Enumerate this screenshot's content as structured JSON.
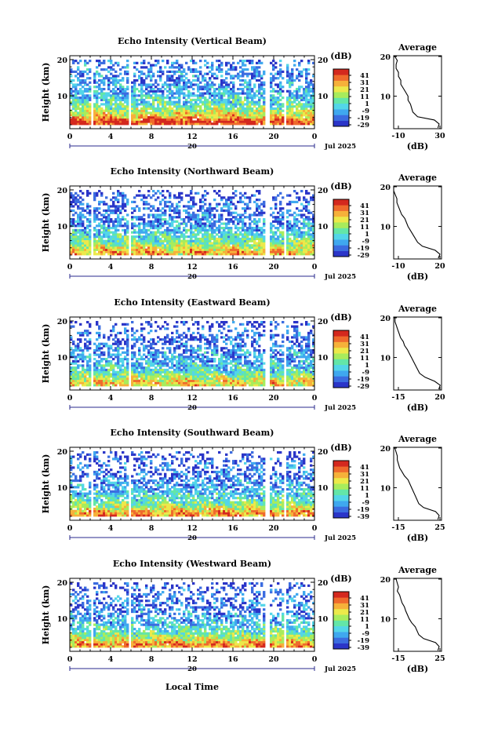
{
  "figure": {
    "panels": [
      {
        "title": "Echo Intensity (Vertical Beam)",
        "colorbar_ticks": [
          "41",
          "31",
          "21",
          "11",
          "1",
          "-9",
          "-19",
          "-29"
        ],
        "profile_xticks": [
          "-10",
          "30"
        ]
      },
      {
        "title": "Echo Intensity (Northward Beam)",
        "colorbar_ticks": [
          "41",
          "31",
          "21",
          "11",
          "1",
          "-9",
          "-19",
          "-29"
        ],
        "profile_xticks": [
          "-10",
          "20"
        ]
      },
      {
        "title": "Echo Intensity (Eastward Beam)",
        "colorbar_ticks": [
          "41",
          "31",
          "21",
          "11",
          "1",
          "-9",
          "-19",
          "-29"
        ],
        "profile_xticks": [
          "-15",
          "20"
        ]
      },
      {
        "title": "Echo Intensity (Southward Beam)",
        "colorbar_ticks": [
          "41",
          "31",
          "21",
          "11",
          "1",
          "-9",
          "-19",
          "-39"
        ],
        "profile_xticks": [
          "-15",
          "25"
        ]
      },
      {
        "title": "Echo Intensity (Westward Beam)",
        "colorbar_ticks": [
          "41",
          "31",
          "21",
          "11",
          "1",
          "-9",
          "-19",
          "-39"
        ],
        "profile_xticks": [
          "-15",
          "25"
        ]
      }
    ],
    "ylabel": "Height (km)",
    "yticks": [
      "10",
      "20"
    ],
    "xticks": [
      "0",
      "4",
      "8",
      "12",
      "16",
      "20",
      "0"
    ],
    "date_day": "20",
    "date_label": "Jul 2025",
    "colorbar_unit": "(dB)",
    "profile_title": "Average",
    "profile_xlabel": "(dB)",
    "bottom_xlabel": "Local Time"
  },
  "colors": {
    "scale": [
      "#2b35c8",
      "#3b6ce0",
      "#3fa8ef",
      "#53d6e8",
      "#63e6a8",
      "#a8ec5c",
      "#ece94a",
      "#f6b13a",
      "#ef6a2c",
      "#d4281e"
    ]
  },
  "chart_data": {
    "type": "heatmap",
    "x_unit": "hour (local time)",
    "x_range": [
      0,
      24
    ],
    "y_unit": "km",
    "y_range": [
      2,
      20
    ],
    "data_gaps_hours": [
      [
        2.0,
        2.25
      ],
      [
        5.8,
        6.0
      ],
      [
        19.2,
        19.7
      ],
      [
        21.0,
        21.2
      ]
    ],
    "panels": [
      {
        "beam": "Vertical",
        "heatmap_levels_by_height": [
          [
            2,
            8
          ],
          [
            3,
            9
          ],
          [
            4,
            7
          ],
          [
            5,
            6
          ],
          [
            6,
            5
          ],
          [
            8,
            3.5
          ],
          [
            10,
            2.5
          ],
          [
            12,
            2
          ],
          [
            14,
            1.5
          ],
          [
            16,
            1.5
          ],
          [
            18,
            1.5
          ],
          [
            20,
            1
          ]
        ],
        "profile": {
          "xrange": [
            -10,
            30
          ],
          "points": [
            [
              27,
              2
            ],
            [
              28,
              3
            ],
            [
              24,
              4
            ],
            [
              10,
              4.8
            ],
            [
              6,
              6
            ],
            [
              4,
              8
            ],
            [
              2,
              9
            ],
            [
              2,
              10
            ],
            [
              0,
              11
            ],
            [
              -2,
              12
            ],
            [
              -4,
              13
            ],
            [
              -4,
              14
            ],
            [
              -6,
              15
            ],
            [
              -6,
              16
            ],
            [
              -8,
              17
            ],
            [
              -8,
              18
            ],
            [
              -7,
              19
            ],
            [
              -9,
              20
            ]
          ]
        }
      },
      {
        "beam": "Northward",
        "heatmap_levels_by_height": [
          [
            2,
            6.5
          ],
          [
            3,
            7
          ],
          [
            4,
            6
          ],
          [
            5,
            5
          ],
          [
            6,
            4
          ],
          [
            8,
            3
          ],
          [
            10,
            2
          ],
          [
            12,
            1.5
          ],
          [
            14,
            1
          ],
          [
            16,
            1
          ],
          [
            18,
            0.5
          ],
          [
            20,
            0
          ]
        ],
        "profile": {
          "xrange": [
            -10,
            20
          ],
          "points": [
            [
              18,
              2
            ],
            [
              19,
              3
            ],
            [
              16,
              4
            ],
            [
              8,
              5
            ],
            [
              5,
              6
            ],
            [
              2,
              8
            ],
            [
              -1,
              10
            ],
            [
              -3,
              12
            ],
            [
              -5,
              13
            ],
            [
              -6,
              14
            ],
            [
              -7,
              15
            ],
            [
              -8,
              16
            ],
            [
              -8,
              17
            ],
            [
              -9,
              18
            ],
            [
              -10,
              19
            ],
            [
              -10,
              20
            ]
          ]
        }
      },
      {
        "beam": "Eastward",
        "heatmap_levels_by_height": [
          [
            2,
            6
          ],
          [
            3,
            6.5
          ],
          [
            4,
            5.5
          ],
          [
            5,
            4.5
          ],
          [
            6,
            3.5
          ],
          [
            8,
            2.5
          ],
          [
            10,
            2
          ],
          [
            12,
            1.5
          ],
          [
            14,
            1
          ],
          [
            16,
            1
          ],
          [
            18,
            0.5
          ],
          [
            20,
            0
          ]
        ],
        "profile": {
          "xrange": [
            -15,
            20
          ],
          "points": [
            [
              18,
              2
            ],
            [
              19,
              3
            ],
            [
              15,
              4
            ],
            [
              8,
              5
            ],
            [
              4,
              6
            ],
            [
              1,
              8
            ],
            [
              -2,
              10
            ],
            [
              -5,
              12
            ],
            [
              -7,
              13
            ],
            [
              -8,
              14
            ],
            [
              -10,
              15
            ],
            [
              -11,
              16
            ],
            [
              -12,
              17
            ],
            [
              -13,
              18
            ],
            [
              -14,
              19
            ],
            [
              -14,
              20
            ]
          ]
        }
      },
      {
        "beam": "Southward",
        "heatmap_levels_by_height": [
          [
            2,
            7
          ],
          [
            3,
            7.5
          ],
          [
            4,
            6
          ],
          [
            5,
            5
          ],
          [
            6,
            4
          ],
          [
            8,
            3
          ],
          [
            10,
            2
          ],
          [
            12,
            1.5
          ],
          [
            14,
            1
          ],
          [
            16,
            1
          ],
          [
            18,
            0.5
          ],
          [
            20,
            0
          ]
        ],
        "profile": {
          "xrange": [
            -15,
            25
          ],
          "points": [
            [
              22,
              2
            ],
            [
              23,
              3
            ],
            [
              20,
              4
            ],
            [
              10,
              5
            ],
            [
              6,
              6
            ],
            [
              3,
              8
            ],
            [
              0,
              10
            ],
            [
              -3,
              12
            ],
            [
              -6,
              13
            ],
            [
              -8,
              14
            ],
            [
              -10,
              15
            ],
            [
              -11,
              16
            ],
            [
              -12,
              17
            ],
            [
              -12,
              18
            ],
            [
              -13,
              19
            ],
            [
              -14,
              20
            ]
          ]
        }
      },
      {
        "beam": "Westward",
        "heatmap_levels_by_height": [
          [
            2,
            7
          ],
          [
            3,
            7.5
          ],
          [
            4,
            6
          ],
          [
            5,
            5
          ],
          [
            6,
            4
          ],
          [
            8,
            3
          ],
          [
            10,
            2
          ],
          [
            12,
            1.5
          ],
          [
            14,
            1
          ],
          [
            16,
            1
          ],
          [
            18,
            0.5
          ],
          [
            20,
            0
          ]
        ],
        "profile": {
          "xrange": [
            -15,
            25
          ],
          "points": [
            [
              22,
              2
            ],
            [
              23,
              3
            ],
            [
              20,
              4
            ],
            [
              10,
              5
            ],
            [
              6,
              6
            ],
            [
              3,
              8
            ],
            [
              0,
              9
            ],
            [
              -2,
              10
            ],
            [
              -5,
              12
            ],
            [
              -6,
              13
            ],
            [
              -8,
              14
            ],
            [
              -9,
              15
            ],
            [
              -10,
              16
            ],
            [
              -12,
              17
            ],
            [
              -11,
              18
            ],
            [
              -12,
              19
            ],
            [
              -13,
              20
            ]
          ]
        }
      }
    ]
  }
}
